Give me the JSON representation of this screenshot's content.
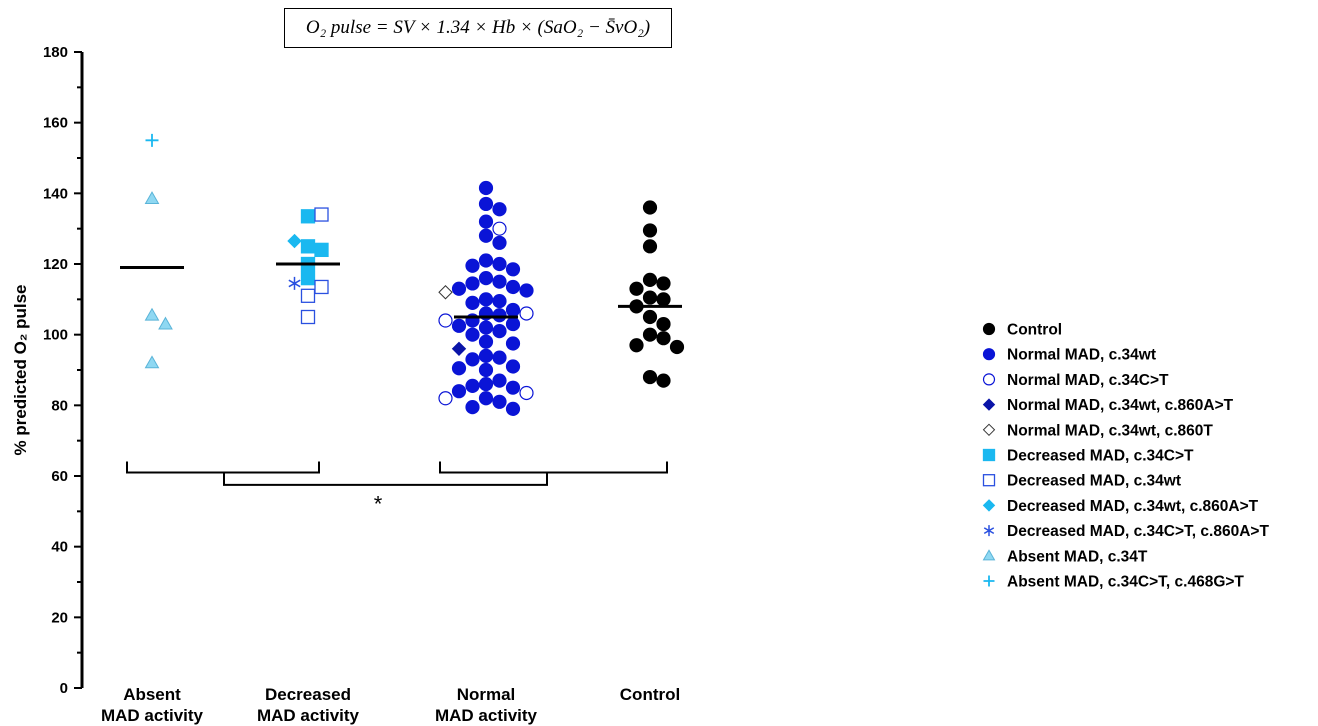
{
  "formula": "O₂ pulse = SV × 1.34 × Hb × (SaO₂ − S̄vO₂)",
  "significance_marker": "*",
  "chart_data": {
    "type": "scatter",
    "title": "",
    "xlabel": "",
    "ylabel": "% predicted O₂ pulse",
    "ylim": [
      0,
      180
    ],
    "yticks": [
      0,
      20,
      40,
      60,
      80,
      100,
      120,
      140,
      160,
      180
    ],
    "grid": false,
    "legend_position": "right",
    "categories": [
      {
        "line1": "Absent",
        "line2": "MAD activity"
      },
      {
        "line1": "Decreased",
        "line2": "MAD activity"
      },
      {
        "line1": "Normal",
        "line2": "MAD activity"
      },
      {
        "line1": "Control",
        "line2": ""
      }
    ],
    "means": [
      119,
      120,
      105,
      108
    ],
    "series": [
      {
        "name": "Control",
        "marker": "circle",
        "color": "#000000",
        "filled": true,
        "group": 3,
        "points": [
          136,
          129.5,
          125,
          115.5,
          114.5,
          113,
          110.5,
          110,
          108,
          105,
          103,
          100,
          99,
          97,
          96.5,
          88,
          87
        ]
      },
      {
        "name": "Normal MAD, c.34wt",
        "marker": "circle",
        "color": "#0a14d6",
        "filled": true,
        "group": 2,
        "points": [
          141.5,
          137,
          135.5,
          132,
          128,
          126,
          121,
          120,
          119.5,
          118.5,
          116,
          115,
          114.5,
          113.5,
          113,
          112.5,
          110,
          109.5,
          109,
          107,
          106,
          105.5,
          104,
          103,
          102.5,
          102,
          101,
          100,
          98,
          97.5,
          94,
          93.5,
          93,
          91,
          90.5,
          90,
          87,
          86,
          85.5,
          85,
          84,
          82,
          81,
          79.5,
          79
        ]
      },
      {
        "name": "Normal MAD, c.34C>T",
        "marker": "circle",
        "color": "#0a14d6",
        "filled": false,
        "group": 2,
        "points": [
          130,
          106,
          104,
          83.5,
          82
        ]
      },
      {
        "name": "Normal MAD, c.34wt, c.860A>T",
        "marker": "diamond",
        "color": "#0a14a8",
        "filled": true,
        "group": 2,
        "points": [
          96
        ]
      },
      {
        "name": "Normal MAD, c.34wt, c.860T",
        "marker": "diamond",
        "color": "#0a14d6",
        "filled": false,
        "group": 2,
        "points": [
          112
        ]
      },
      {
        "name": "Decreased MAD, c.34C>T",
        "marker": "square",
        "color": "#1ab8f0",
        "filled": true,
        "group": 1,
        "points": [
          133.5,
          125,
          124,
          120,
          116
        ]
      },
      {
        "name": "Decreased MAD, c.34wt",
        "marker": "square",
        "color": "#2a50e0",
        "filled": false,
        "group": 1,
        "points": [
          134,
          113.5,
          111,
          105
        ]
      },
      {
        "name": "Decreased MAD, c.34wt, c.860A>T",
        "marker": "diamond",
        "color": "#1ab8f0",
        "filled": true,
        "group": 1,
        "points": [
          126.5
        ]
      },
      {
        "name": "Decreased MAD, c.34C>T, c.860A>T",
        "marker": "asterisk",
        "color": "#2a50e0",
        "filled": false,
        "group": 1,
        "points": [
          114.5
        ]
      },
      {
        "name": "Absent MAD, c.34T",
        "marker": "triangle",
        "color": "#8fd8f2",
        "filled": true,
        "group": 0,
        "points": [
          138.5,
          105.5,
          103,
          92
        ]
      },
      {
        "name": "Absent MAD, c.34C>T, c.468G>T",
        "marker": "plus",
        "color": "#1ab8f0",
        "filled": false,
        "group": 0,
        "points": [
          155
        ]
      }
    ]
  }
}
